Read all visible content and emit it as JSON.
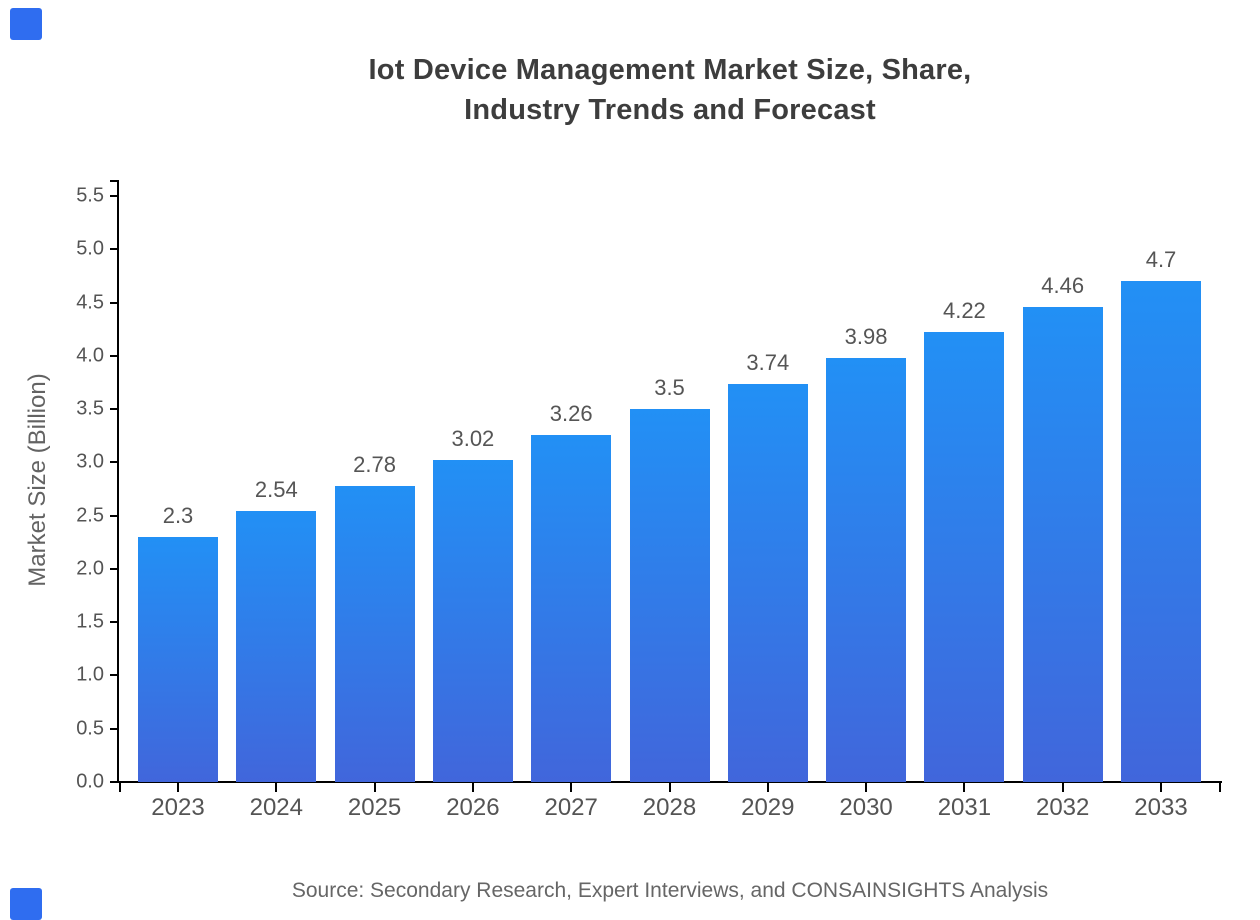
{
  "page": {
    "background": "#ffffff",
    "brand_square_color": "#2f6df0"
  },
  "colors": {
    "title": "#3d3d3d",
    "axis_line": "#000000",
    "tick_label": "#545454",
    "value_label": "#555555",
    "axis_title": "#636363",
    "source": "#666666",
    "bar_top": "#2290f5",
    "bar_bottom": "#4166db"
  },
  "chart_data": {
    "type": "bar",
    "title": "Iot Device Management Market Size, Share, Industry Trends and Forecast",
    "title_lines": [
      "Iot Device Management Market Size, Share,",
      "Industry Trends and Forecast"
    ],
    "xlabel": "",
    "ylabel": "Market Size (Billion)",
    "categories": [
      "2023",
      "2024",
      "2025",
      "2026",
      "2027",
      "2028",
      "2029",
      "2030",
      "2031",
      "2032",
      "2033"
    ],
    "values": [
      2.3,
      2.54,
      2.78,
      3.02,
      3.26,
      3.5,
      3.74,
      3.98,
      4.22,
      4.46,
      4.7
    ],
    "value_labels": [
      "2.3",
      "2.54",
      "2.78",
      "3.02",
      "3.26",
      "3.5",
      "3.74",
      "3.98",
      "4.22",
      "4.46",
      "4.7"
    ],
    "ylim": [
      0,
      5.65
    ],
    "yticks": [
      0,
      0.5,
      1,
      1.5,
      2,
      2.5,
      3,
      3.5,
      4,
      4.5,
      5,
      5.5
    ],
    "ytick_labels": [
      "0.0",
      "0.5",
      "1.0",
      "1.5",
      "2.0",
      "2.5",
      "3.0",
      "3.5",
      "4.0",
      "4.5",
      "5.0",
      "5.5"
    ],
    "grid": false,
    "legend_position": "none",
    "bar_color_gradient": [
      "#2290f5",
      "#4166db"
    ],
    "source_note": "Source: Secondary Research, Expert Interviews, and CONSAINSIGHTS Analysis"
  }
}
